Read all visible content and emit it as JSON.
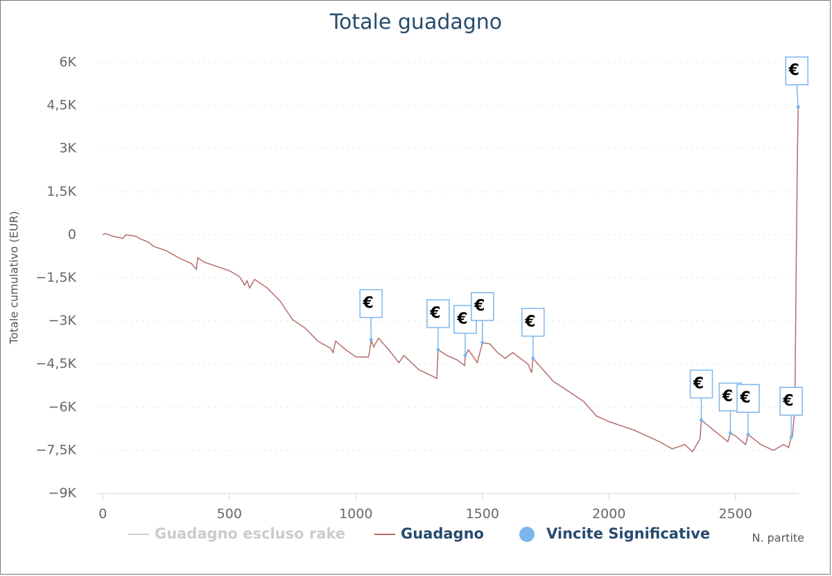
{
  "chart_data": {
    "type": "line",
    "title": "Totale guadagno",
    "y_label": "Totale cumulativo (EUR)",
    "x_label": "N. partite",
    "xlim": [
      -20,
      2750
    ],
    "xticks": [
      0,
      500,
      1000,
      1500,
      2000,
      2500
    ],
    "ylim": [
      -9000,
      6000
    ],
    "yticks": [
      {
        "value": -9000,
        "label": "−9K"
      },
      {
        "value": -7500,
        "label": "−7,5K"
      },
      {
        "value": -6000,
        "label": "−6K"
      },
      {
        "value": -4500,
        "label": "−4,5K"
      },
      {
        "value": -3000,
        "label": "−3K"
      },
      {
        "value": -1500,
        "label": "−1,5K"
      },
      0,
      {
        "value": 1500,
        "label": "1,5K"
      },
      {
        "value": 3000,
        "label": "3K"
      },
      {
        "value": 4500,
        "label": "4,5K"
      },
      {
        "value": 6000,
        "label": "6K"
      }
    ],
    "grid": true,
    "series": [
      {
        "name": "Guadagno escluso rake",
        "color": "#cccccc",
        "visible": false,
        "x": [],
        "values": []
      },
      {
        "name": "Guadagno",
        "color": "#b56b6b",
        "x": [
          0,
          10,
          40,
          80,
          90,
          110,
          130,
          150,
          180,
          200,
          250,
          300,
          350,
          370,
          375,
          400,
          450,
          500,
          540,
          560,
          570,
          580,
          600,
          650,
          700,
          750,
          800,
          850,
          900,
          910,
          920,
          960,
          1000,
          1050,
          1055,
          1060,
          1070,
          1090,
          1130,
          1170,
          1190,
          1250,
          1310,
          1320,
          1325,
          1360,
          1400,
          1430,
          1432,
          1445,
          1480,
          1500,
          1530,
          1560,
          1590,
          1620,
          1680,
          1695,
          1700,
          1720,
          1780,
          1850,
          1900,
          1950,
          2000,
          2100,
          2200,
          2250,
          2300,
          2330,
          2360,
          2365,
          2400,
          2470,
          2480,
          2500,
          2540,
          2550,
          2600,
          2650,
          2690,
          2710,
          2720,
          2725,
          2735,
          2740,
          2745,
          2748
        ],
        "values": [
          0,
          50,
          -50,
          -120,
          0,
          -20,
          -50,
          -150,
          -250,
          -400,
          -550,
          -800,
          -1000,
          -1200,
          -800,
          -950,
          -1100,
          -1250,
          -1450,
          -1750,
          -1600,
          -1850,
          -1550,
          -1850,
          -2300,
          -2950,
          -3250,
          -3700,
          -3950,
          -4100,
          -3700,
          -4000,
          -4250,
          -4250,
          -4000,
          -3650,
          -3900,
          -3600,
          -4000,
          -4450,
          -4200,
          -4700,
          -4950,
          -5000,
          -4000,
          -4200,
          -4350,
          -4550,
          -4200,
          -4000,
          -4450,
          -3750,
          -3800,
          -4100,
          -4300,
          -4100,
          -4500,
          -4800,
          -4300,
          -4500,
          -5100,
          -5500,
          -5800,
          -6300,
          -6500,
          -6800,
          -7200,
          -7450,
          -7300,
          -7550,
          -7100,
          -6450,
          -6700,
          -7200,
          -6900,
          -7000,
          -7300,
          -6950,
          -7300,
          -7500,
          -7300,
          -7400,
          -7050,
          -7000,
          -6000,
          -1000,
          3000,
          4450
        ]
      },
      {
        "name": "Vincite Significative",
        "color": "#7cb5ec",
        "marker_text": "€",
        "x": [
          1060,
          1325,
          1432,
          1500,
          1700,
          2365,
          2480,
          2550,
          2720,
          2748
        ],
        "values": [
          -3650,
          -4000,
          -4200,
          -3750,
          -4300,
          -6450,
          -6900,
          -6950,
          -7050,
          4450
        ]
      }
    ]
  }
}
